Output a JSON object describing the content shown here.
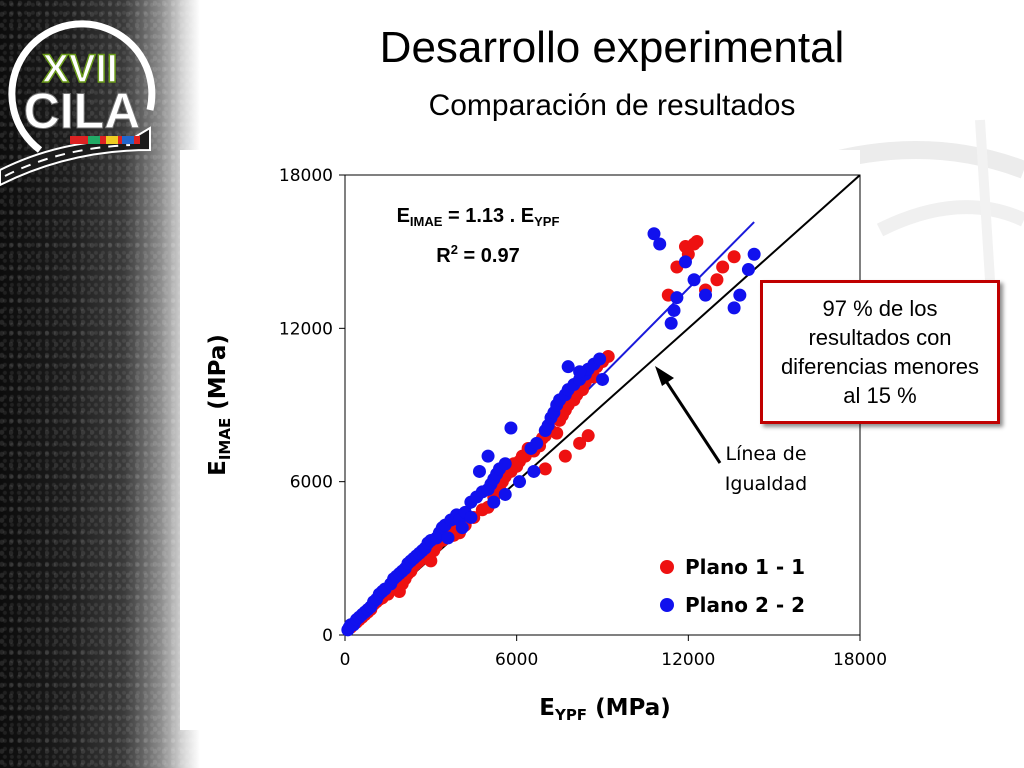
{
  "slide": {
    "title": "Desarrollo experimental",
    "subtitle": "Comparación de resultados",
    "logo": {
      "text": "XVII CILA",
      "roman": "XVII",
      "name": "CILA"
    },
    "callout": "97 % de los resultados con diferencias menores al 15 %"
  },
  "colors": {
    "red_series": "#ee1111",
    "blue_series": "#1111ee",
    "callout_border": "#c00000",
    "fit_line": "#1a1adb",
    "equality_line": "#000000"
  },
  "chart_data": {
    "type": "scatter",
    "xlabel": {
      "main": "E",
      "sub": "YPF",
      "unit": "(MPa)"
    },
    "ylabel": {
      "main": "E",
      "sub": "IMAE",
      "unit": "(MPa)"
    },
    "xlim": [
      0,
      18000
    ],
    "ylim": [
      0,
      18000
    ],
    "x_ticks": [
      "0",
      "6000",
      "12000",
      "18000"
    ],
    "y_ticks": [
      "0",
      "6000",
      "12000",
      "18000"
    ],
    "grid": false,
    "legend_position": "bottom-right",
    "equation": {
      "lhs": "E",
      "lhs_sub": "IMAE",
      "mid": " = 1.13 . E",
      "rhs_sub": "YPF",
      "r_label": "R",
      "r_sup": "2",
      "r_val": " = 0.97"
    },
    "equality_label": [
      "Línea de",
      "Igualdad"
    ],
    "fit_line": {
      "slope": 1.13,
      "x_range": [
        200,
        14300
      ]
    },
    "equality_line": {
      "x_range": [
        0,
        18000
      ]
    },
    "series": [
      {
        "name": "Plano 1 - 1",
        "color": "#ee1111",
        "points": [
          [
            200,
            300
          ],
          [
            400,
            500
          ],
          [
            500,
            600
          ],
          [
            600,
            700
          ],
          [
            700,
            800
          ],
          [
            800,
            900
          ],
          [
            900,
            1000
          ],
          [
            1000,
            1200
          ],
          [
            1100,
            1300
          ],
          [
            1200,
            1400
          ],
          [
            1300,
            1450
          ],
          [
            1500,
            1600
          ],
          [
            1700,
            1800
          ],
          [
            1900,
            1700
          ],
          [
            2000,
            2000
          ],
          [
            2100,
            2200
          ],
          [
            2200,
            2400
          ],
          [
            2300,
            2500
          ],
          [
            2400,
            2700
          ],
          [
            2500,
            2800
          ],
          [
            2600,
            2900
          ],
          [
            2700,
            3000
          ],
          [
            2800,
            3100
          ],
          [
            3000,
            2900
          ],
          [
            3100,
            3300
          ],
          [
            3200,
            3500
          ],
          [
            3400,
            3700
          ],
          [
            3600,
            3900
          ],
          [
            3800,
            3900
          ],
          [
            4200,
            4300
          ],
          [
            4500,
            4600
          ],
          [
            4800,
            4900
          ],
          [
            5000,
            5000
          ],
          [
            5200,
            5400
          ],
          [
            5400,
            5800
          ],
          [
            5500,
            6000
          ],
          [
            5600,
            6200
          ],
          [
            5800,
            6400
          ],
          [
            5900,
            6700
          ],
          [
            6000,
            6600
          ],
          [
            6100,
            6800
          ],
          [
            6300,
            7000
          ],
          [
            6400,
            7300
          ],
          [
            6600,
            7200
          ],
          [
            6800,
            7400
          ],
          [
            6900,
            7700
          ],
          [
            7000,
            7800
          ],
          [
            7200,
            8000
          ],
          [
            7400,
            7900
          ],
          [
            7500,
            8400
          ],
          [
            7600,
            8600
          ],
          [
            7700,
            8800
          ],
          [
            7800,
            9000
          ],
          [
            8000,
            9200
          ],
          [
            8100,
            9400
          ],
          [
            8300,
            9600
          ],
          [
            8400,
            9900
          ],
          [
            8600,
            10200
          ],
          [
            8800,
            10500
          ],
          [
            9000,
            10700
          ],
          [
            9200,
            10900
          ],
          [
            7000,
            6500
          ],
          [
            7700,
            7000
          ],
          [
            8200,
            7500
          ],
          [
            8500,
            7800
          ],
          [
            6200,
            7000
          ],
          [
            8000,
            9500
          ],
          [
            8200,
            9800
          ],
          [
            8700,
            10100
          ],
          [
            11300,
            13300
          ],
          [
            11600,
            14400
          ],
          [
            11900,
            15200
          ],
          [
            12000,
            14900
          ],
          [
            12300,
            15400
          ],
          [
            12200,
            15300
          ],
          [
            12600,
            13500
          ],
          [
            13000,
            13900
          ],
          [
            13200,
            14400
          ],
          [
            13600,
            14800
          ],
          [
            3500,
            4200
          ],
          [
            3800,
            4100
          ],
          [
            4000,
            4000
          ]
        ]
      },
      {
        "name": "Plano 2 - 2",
        "color": "#1111ee",
        "points": [
          [
            100,
            200
          ],
          [
            150,
            300
          ],
          [
            200,
            400
          ],
          [
            300,
            400
          ],
          [
            400,
            600
          ],
          [
            500,
            700
          ],
          [
            600,
            800
          ],
          [
            700,
            900
          ],
          [
            800,
            1000
          ],
          [
            900,
            1100
          ],
          [
            1000,
            1300
          ],
          [
            1100,
            1400
          ],
          [
            1200,
            1600
          ],
          [
            1300,
            1700
          ],
          [
            1400,
            1800
          ],
          [
            1600,
            2000
          ],
          [
            1700,
            2200
          ],
          [
            1800,
            2300
          ],
          [
            1900,
            2400
          ],
          [
            2000,
            2500
          ],
          [
            2100,
            2600
          ],
          [
            2200,
            2800
          ],
          [
            2300,
            2900
          ],
          [
            2400,
            3000
          ],
          [
            2500,
            3100
          ],
          [
            2600,
            3200
          ],
          [
            2700,
            3300
          ],
          [
            2800,
            3400
          ],
          [
            2900,
            3600
          ],
          [
            3000,
            3700
          ],
          [
            3200,
            3800
          ],
          [
            3300,
            4000
          ],
          [
            3400,
            4200
          ],
          [
            3500,
            4300
          ],
          [
            3700,
            4500
          ],
          [
            3900,
            4700
          ],
          [
            4000,
            4500
          ],
          [
            4200,
            4800
          ],
          [
            4400,
            5200
          ],
          [
            4600,
            5400
          ],
          [
            4800,
            5600
          ],
          [
            5000,
            5700
          ],
          [
            5100,
            5900
          ],
          [
            5200,
            6100
          ],
          [
            5300,
            6300
          ],
          [
            5400,
            6500
          ],
          [
            5600,
            6700
          ],
          [
            4700,
            6400
          ],
          [
            5800,
            8100
          ],
          [
            5000,
            7000
          ],
          [
            6500,
            7300
          ],
          [
            6700,
            7500
          ],
          [
            7000,
            8000
          ],
          [
            7100,
            8200
          ],
          [
            7200,
            8500
          ],
          [
            7300,
            8700
          ],
          [
            7400,
            9000
          ],
          [
            7500,
            9200
          ],
          [
            7700,
            9400
          ],
          [
            7800,
            9600
          ],
          [
            8000,
            9800
          ],
          [
            8200,
            10000
          ],
          [
            8400,
            10200
          ],
          [
            8500,
            10400
          ],
          [
            8700,
            10600
          ],
          [
            8900,
            10800
          ],
          [
            7800,
            10500
          ],
          [
            8200,
            10300
          ],
          [
            9000,
            10000
          ],
          [
            10800,
            15700
          ],
          [
            11000,
            15300
          ],
          [
            11500,
            12700
          ],
          [
            11600,
            13200
          ],
          [
            11900,
            14600
          ],
          [
            12200,
            13900
          ],
          [
            13600,
            12800
          ],
          [
            13800,
            13300
          ],
          [
            14100,
            14300
          ],
          [
            14300,
            14900
          ],
          [
            12600,
            13300
          ],
          [
            11400,
            12200
          ],
          [
            5200,
            5200
          ],
          [
            5600,
            5500
          ],
          [
            6100,
            6000
          ],
          [
            6600,
            6400
          ],
          [
            4400,
            4600
          ],
          [
            4100,
            4200
          ],
          [
            3600,
            3800
          ]
        ]
      }
    ]
  }
}
